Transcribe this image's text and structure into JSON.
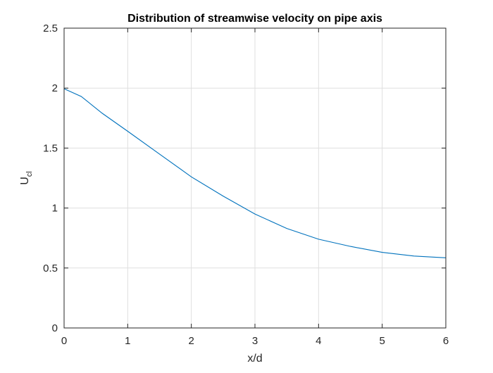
{
  "chart_data": {
    "type": "line",
    "title": "Distribution of streamwise velocity on pipe axis",
    "xlabel": "x/d",
    "ylabel_main": "U",
    "ylabel_sub": "cl",
    "xlim": [
      0,
      6
    ],
    "ylim": [
      0,
      2.5
    ],
    "xticks": [
      "0",
      "1",
      "2",
      "3",
      "4",
      "5",
      "6"
    ],
    "yticks": [
      "0",
      "0.5",
      "1",
      "1.5",
      "2",
      "2.5"
    ],
    "grid": true,
    "legend": "none",
    "series": [
      {
        "color": "#0072BD",
        "x": [
          0,
          0.27,
          0.6,
          1.0,
          1.5,
          2.0,
          2.5,
          3.0,
          3.5,
          4.0,
          4.5,
          5.0,
          5.5,
          6.0
        ],
        "y": [
          1.995,
          1.93,
          1.79,
          1.64,
          1.45,
          1.26,
          1.1,
          0.95,
          0.83,
          0.74,
          0.68,
          0.63,
          0.6,
          0.585
        ]
      }
    ]
  }
}
